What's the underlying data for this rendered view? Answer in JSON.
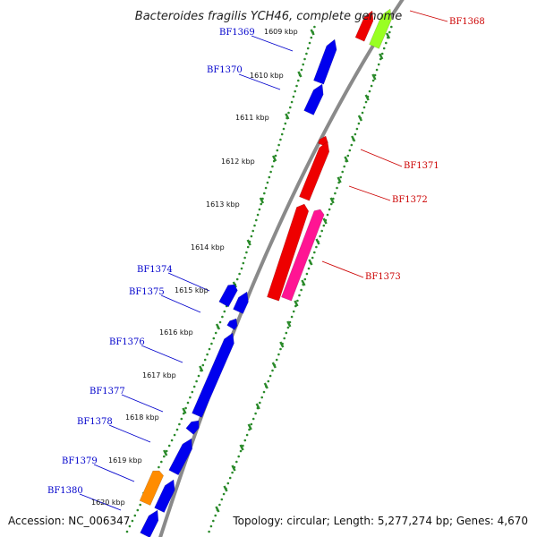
{
  "title": "Bacteroides fragilis YCH46, complete genome",
  "footer": {
    "accession": "Accession: NC_006347",
    "topology": "Topology: circular; Length: 5,277,274 bp; Genes: 4,670"
  },
  "colors": {
    "backbone": "#8a8a8a",
    "dot_track": "#2a8a2a",
    "label_left": "#0000cc",
    "label_right": "#cc0000",
    "gene_blue": "#0000ee",
    "gene_red": "#ee0000",
    "gene_magenta": "#ff1493",
    "gene_orange": "#ff8c00",
    "gene_lime": "#99ff22"
  },
  "kbp_ticks": [
    "1609 kbp",
    "1610 kbp",
    "1611 kbp",
    "1612 kbp",
    "1613 kbp",
    "1614 kbp",
    "1615 kbp",
    "1616 kbp",
    "1617 kbp",
    "1618 kbp",
    "1619 kbp",
    "1620 kbp"
  ],
  "gene_labels_left": [
    "BF1369",
    "BF1370",
    "BF1374",
    "BF1375",
    "BF1376",
    "BF1377",
    "BF1378",
    "BF1379",
    "BF1380"
  ],
  "gene_labels_right": [
    "BF1368",
    "BF1371",
    "BF1372",
    "BF1373"
  ]
}
